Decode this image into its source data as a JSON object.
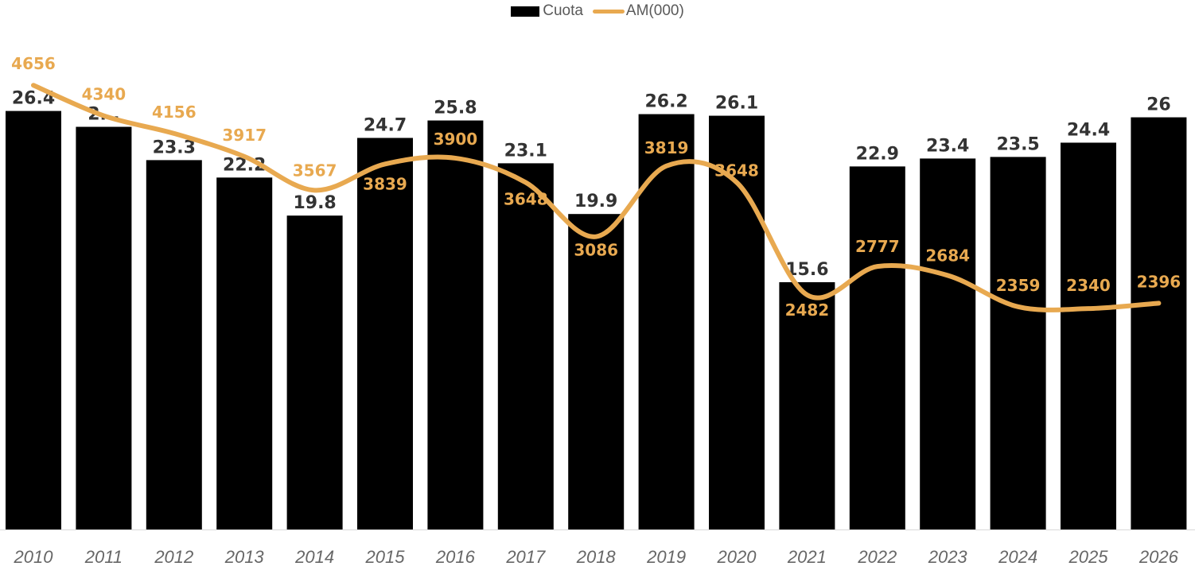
{
  "chart_data": {
    "type": "bar+line",
    "categories": [
      "2010",
      "2011",
      "2012",
      "2013",
      "2014",
      "2015",
      "2016",
      "2017",
      "2018",
      "2019",
      "2020",
      "2021",
      "2022",
      "2023",
      "2024",
      "2025",
      "2026"
    ],
    "series": [
      {
        "name": "Cuota",
        "type": "bar",
        "axis": "primary",
        "color": "#000000",
        "values": [
          26.4,
          25.4,
          23.3,
          22.2,
          19.8,
          24.7,
          25.8,
          23.1,
          19.9,
          26.2,
          26.1,
          15.6,
          22.9,
          23.4,
          23.5,
          24.4,
          26
        ],
        "labels": [
          "26.4",
          "2...",
          "23.3",
          "22.2",
          "19.8",
          "24.7",
          "25.8",
          "23.1",
          "19.9",
          "26.2",
          "26.1",
          "15.6",
          "22.9",
          "23.4",
          "23.5",
          "24.4",
          "26"
        ]
      },
      {
        "name": "AM(000)",
        "type": "line",
        "axis": "secondary",
        "color": "#E8A950",
        "smooth": true,
        "values": [
          4656,
          4340,
          4156,
          3917,
          3567,
          3839,
          3900,
          3648,
          3086,
          3819,
          3648,
          2482,
          2777,
          2684,
          2359,
          2340,
          2396
        ]
      }
    ],
    "primary_ylim": [
      0,
      33.4
    ],
    "secondary_ylim": [
      0,
      5540
    ],
    "axes_visible": false,
    "grid": false,
    "legend": "top-center",
    "label_color": "#333333",
    "tick_color": "#666666"
  }
}
